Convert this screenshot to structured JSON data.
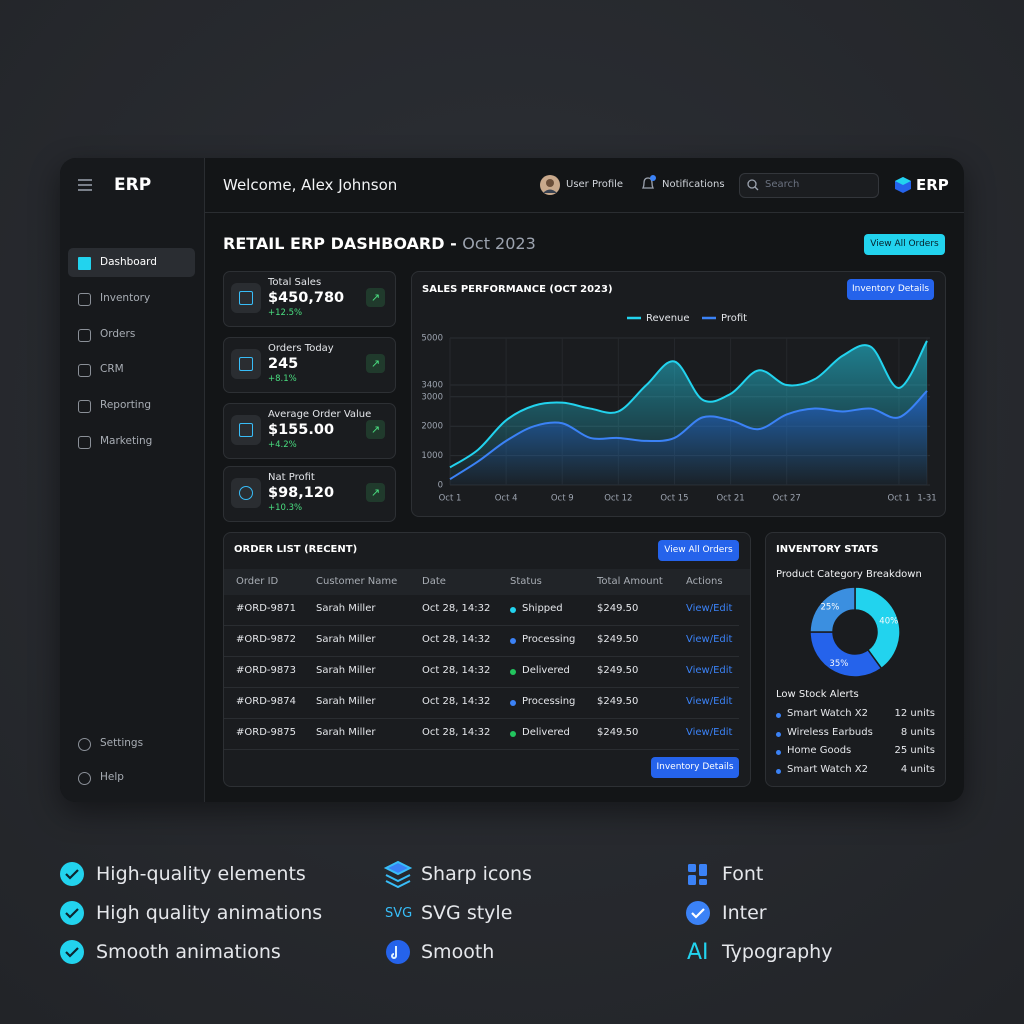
{
  "sidebar": {
    "brand": "ERP",
    "nav": [
      "Dashboard",
      "Inventory",
      "Orders",
      "CRM",
      "Reporting",
      "Marketing"
    ],
    "bottom": [
      "Settings",
      "Help"
    ]
  },
  "header": {
    "welcome": "Welcome, Alex Johnson",
    "user_profile": "User Profile",
    "notifications": "Notifications",
    "search": "Search",
    "logo": "ERP"
  },
  "page": {
    "title": "RETAIL ERP DASHBOARD -",
    "period": "Oct 2023",
    "button": "View All Orders"
  },
  "kpis": [
    {
      "label": "Total Sales",
      "value": "$450,780",
      "change": "+12.5%"
    },
    {
      "label": "Orders Today",
      "value": "245",
      "change": "+8.1%"
    },
    {
      "label": "Average Order Value",
      "value": "$155.00",
      "change": "+4.2%"
    },
    {
      "label": "Nat Profit",
      "value": "$98,120",
      "change": "+10.3%"
    }
  ],
  "sales_chart": {
    "button": "Inventory Details",
    "chart_data": {
      "type": "area",
      "title": "SALES PERFORMANCE (OCT 2023)",
      "categories": [
        "Oct 1",
        null,
        "Oct 4",
        null,
        "Oct 9",
        null,
        "Oct 12",
        null,
        "Oct 15",
        null,
        "Oct 21",
        null,
        "Oct 27",
        null,
        null,
        null,
        "Oct 1",
        "1-31"
      ],
      "series": [
        {
          "name": "Revenue",
          "color": "#22d3ee",
          "values": [
            600,
            1200,
            2200,
            2700,
            2800,
            2600,
            2500,
            3400,
            4200,
            2900,
            3100,
            3900,
            3400,
            3600,
            4400,
            4700,
            3300,
            4900
          ]
        },
        {
          "name": "Profit",
          "color": "#3b82f6",
          "values": [
            200,
            800,
            1500,
            2000,
            2100,
            1600,
            1600,
            1500,
            1600,
            2300,
            2200,
            1900,
            2400,
            2600,
            2500,
            2600,
            2300,
            3200
          ]
        }
      ],
      "ylim": [
        0,
        5000
      ],
      "yticks": [
        0,
        1000,
        2000,
        3000,
        3400,
        5000
      ],
      "grid": true,
      "legend": "top"
    }
  },
  "orders": {
    "title": "ORDER LIST (RECENT)",
    "button": "View All Orders",
    "columns": [
      "Order ID",
      "Customer Name",
      "Date",
      "Status",
      "Total Amount",
      "Actions"
    ],
    "rows": [
      [
        "#ORD-9871",
        "Sarah Miller",
        "Oct 28, 14:32",
        "Shipped",
        "$249.50",
        "View/Edit"
      ],
      [
        "#ORD-9872",
        "Sarah Miller",
        "Oct 28, 14:32",
        "Processing",
        "$249.50",
        "View/Edit"
      ],
      [
        "#ORD-9873",
        "Sarah Miller",
        "Oct 28, 14:32",
        "Delivered",
        "$249.50",
        "View/Edit"
      ],
      [
        "#ORD-9874",
        "Sarah Miller",
        "Oct 28, 14:32",
        "Processing",
        "$249.50",
        "View/Edit"
      ],
      [
        "#ORD-9875",
        "Sarah Miller",
        "Oct 28, 14:32",
        "Delivered",
        "$249.50",
        "View/Edit"
      ]
    ],
    "status_colors": [
      "#22d3ee",
      "#3b82f6",
      "#22c55e",
      "#3b82f6",
      "#22c55e"
    ],
    "footer_button": "Inventory Details"
  },
  "inventory": {
    "title": "INVENTORY STATS",
    "chart_data": {
      "type": "donut",
      "title": "Product Category Breakdown",
      "values": [
        40,
        35,
        25
      ],
      "value_labels": [
        "40%",
        "35%",
        "25%"
      ],
      "colors": [
        "#22d3ee",
        "#2563eb",
        "#3b8fe0"
      ]
    },
    "alerts_title": "Low Stock Alerts",
    "alerts": [
      [
        "Smart Watch X2",
        "12 units"
      ],
      [
        "Wireless Earbuds",
        "8 units"
      ],
      [
        "Home Goods",
        "25 units"
      ],
      [
        "Smart Watch X2",
        "4 units"
      ]
    ]
  },
  "features": {
    "col1": [
      "High-quality elements",
      "High quality animations",
      "Smooth animations"
    ],
    "col2": [
      "Sharp icons",
      "SVG style",
      "Smooth"
    ],
    "col3": [
      "Font",
      "Inter",
      "Typography"
    ],
    "icon_svg": "SVG",
    "icon_ai": "AI"
  }
}
